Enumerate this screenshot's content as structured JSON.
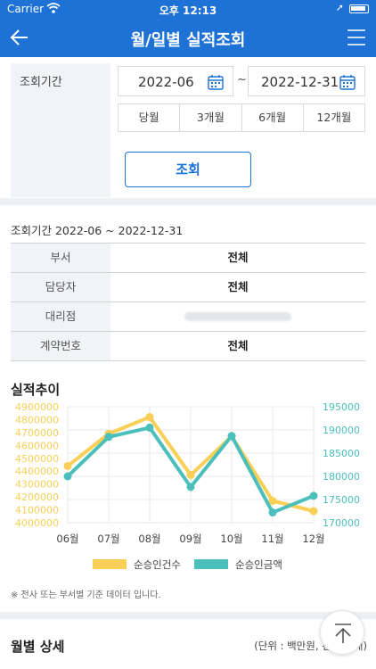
{
  "status_bar": {
    "carrier": "Carrier",
    "time": "오후 12:13"
  },
  "nav": {
    "title": "월/일별 실적조회"
  },
  "filter": {
    "label": "조회기간",
    "start_date": "2022-06",
    "end_date": "2022-12-31",
    "separator": "~",
    "periods": [
      "당월",
      "3개월",
      "6개월",
      "12개월"
    ]
  },
  "search_button": "조회",
  "result": {
    "period_text": "조회기간 2022-06 ~ 2022-12-31",
    "rows": [
      {
        "key": "부서",
        "value": "전체"
      },
      {
        "key": "담당자",
        "value": "전체"
      },
      {
        "key": "대리점",
        "value": ""
      },
      {
        "key": "계약번호",
        "value": "전체"
      }
    ]
  },
  "chart_title": "실적추이",
  "chart_data": {
    "type": "line",
    "categories": [
      "06월",
      "07월",
      "08월",
      "09월",
      "10월",
      "11월",
      "12월"
    ],
    "series": [
      {
        "name": "순승인건수",
        "axis": "left",
        "color": "#f9cf55",
        "values": [
          4440000,
          4690000,
          4820000,
          4370000,
          4670000,
          4170000,
          4090000
        ]
      },
      {
        "name": "순승인금액",
        "axis": "right",
        "color": "#4bbfbc",
        "values": [
          180000,
          188500,
          190500,
          177700,
          188700,
          172200,
          175800
        ]
      }
    ],
    "y_left": {
      "ticks": [
        "4900000",
        "4800000",
        "4700000",
        "4600000",
        "4500000",
        "4400000",
        "4300000",
        "4200000",
        "4100000",
        "4000000"
      ],
      "min": 4000000,
      "max": 4900000,
      "color": "#f9cf55"
    },
    "y_right": {
      "ticks": [
        "195000",
        "190000",
        "185000",
        "180000",
        "175000",
        "170000"
      ],
      "min": 170000,
      "max": 195000,
      "color": "#4bbfbc"
    },
    "grid": true,
    "legend": "bottom"
  },
  "note": "※ 전사 또는 부서별 기준 데이터 입니다.",
  "monthly": {
    "title": "월별 상세",
    "unit": "(단위 : 백만원, 건, 건, 대)"
  },
  "colors": {
    "primary": "#1e72d6",
    "yellow": "#f9cf55",
    "teal": "#4bbfbc"
  }
}
